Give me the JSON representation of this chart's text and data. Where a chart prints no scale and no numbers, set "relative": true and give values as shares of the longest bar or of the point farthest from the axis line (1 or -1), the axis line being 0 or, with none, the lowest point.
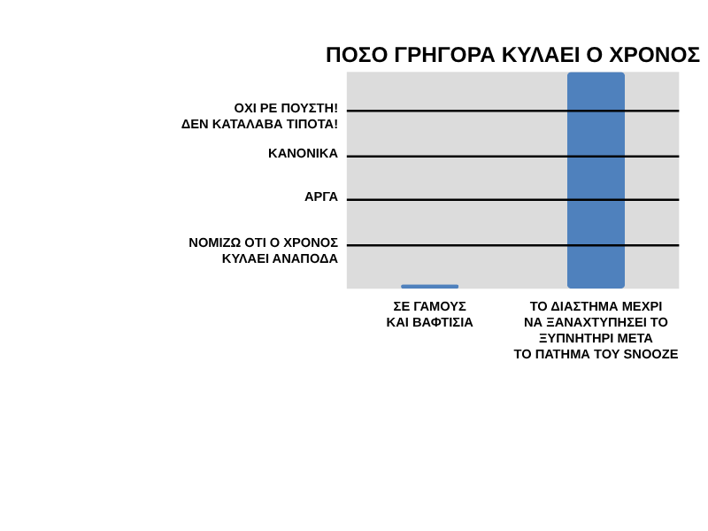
{
  "chart_data": {
    "type": "bar",
    "title": "ΠΟΣΟ ΓΡΗΓΟΡΑ ΚΥΛΑΕΙ Ο ΧΡΟΝΟΣ",
    "categories": [
      "ΣΕ ΓΑΜΟΥΣ\nΚΑΙ ΒΑΦΤΙΣΙΑ",
      "ΤΟ ΔΙΑΣΤΗΜΑ ΜΕΧΡΙ\nΝΑ ΞΑΝΑΧΤΥΠΗΣΕΙ ΤΟ\nΞΥΠΝΗΤΗΡΙ ΜΕΤΑ\nΤΟ ΠΑΤΗΜΑ ΤΟΥ SNOOZE"
    ],
    "values": [
      0.02,
      1
    ],
    "color": "#4f81bd",
    "relative": true,
    "ref_lines": [
      {
        "axis": "y",
        "value": 0.2,
        "label": "ΝΟΜΙΖΩ ΟΤΙ Ο ΧΡΟΝΟΣ\nΚΥΛΑΕΙ ΑΝΑΠΟΔΑ",
        "color": "#000000"
      },
      {
        "axis": "y",
        "value": 0.41,
        "label": "ΑΡΓΑ",
        "color": "#000000"
      },
      {
        "axis": "y",
        "value": 0.61,
        "label": "ΚΑΝΟΝΙΚΑ",
        "color": "#000000"
      },
      {
        "axis": "y",
        "value": 0.82,
        "label": "ΟΧΙ ΡΕ ΠΟΥΣΤΗ!\nΔΕΝ ΚΑΤΑΛΑΒΑ ΤΙΠΟΤΑ!",
        "color": "#000000"
      }
    ]
  }
}
